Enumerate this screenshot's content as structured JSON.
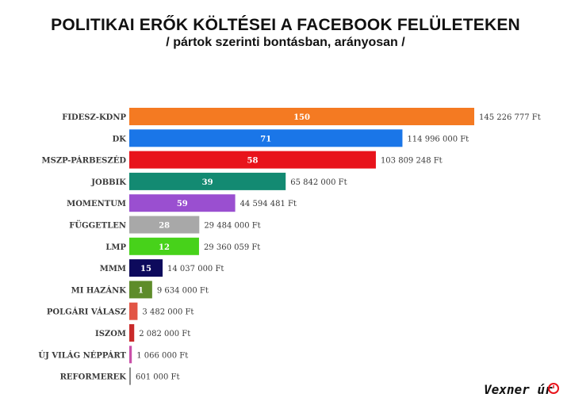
{
  "header": {
    "title": "POLITIKAI ERŐK KÖLTÉSEI A FACEBOOK FELÜLETEKEN",
    "subtitle": "/ pártok szerinti bontásban, arányosan /"
  },
  "signature": {
    "text": "Vexner úr"
  },
  "chart_data": {
    "type": "bar",
    "orientation": "horizontal",
    "title": "POLITIKAI ERŐK KÖLTÉSEI A FACEBOOK FELÜLETEKEN",
    "subtitle": "/ pártok szerinti bontásban, arányosan /",
    "xlabel": "",
    "ylabel": "",
    "grid": false,
    "xlim": [
      0,
      145226777
    ],
    "categories": [
      "FIDESZ-KDNP",
      "DK",
      "MSZP-PÁRBESZÉD",
      "JOBBIK",
      "MOMENTUM",
      "FÜGGETLEN",
      "LMP",
      "MMM",
      "MI HAZÁNK",
      "POLGÁRI VÁLASZ",
      "ISZOM",
      "ÚJ VILÁG NÉPPÁRT",
      "REFORMEREK"
    ],
    "values": [
      145226777,
      114996000,
      103809248,
      65842000,
      44594481,
      29484000,
      29360059,
      14037000,
      9634000,
      3482000,
      2082000,
      1066000,
      601000
    ],
    "value_labels": [
      "145 226 777 Ft",
      "114 996 000 Ft",
      "103 809 248 Ft",
      "65 842 000 Ft",
      "44 594 481 Ft",
      "29 484 000 Ft",
      "29 360 059 Ft",
      "14 037 000 Ft",
      "9 634 000 Ft",
      "3 482 000 Ft",
      "2 082 000 Ft",
      "1 066 000 Ft",
      "601 000 Ft"
    ],
    "bar_numbers": [
      "150",
      "71",
      "58",
      "39",
      "59",
      "28",
      "12",
      "15",
      "1",
      "",
      "",
      "",
      ""
    ],
    "colors": [
      "#f47a22",
      "#1a76e8",
      "#e8131b",
      "#138a72",
      "#9a4fd0",
      "#a8a8a8",
      "#47d21a",
      "#0d0a5c",
      "#5e8c2a",
      "#e25545",
      "#c92a2a",
      "#c94fa8",
      "#8a8a8a"
    ]
  }
}
